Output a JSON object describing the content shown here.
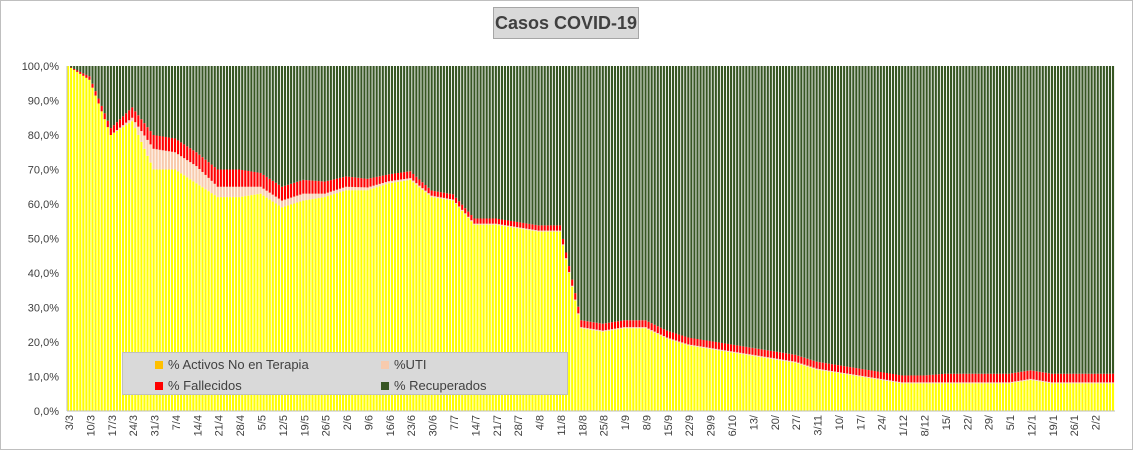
{
  "title": "Casos  COVID-19",
  "legend": {
    "items": [
      {
        "label": "% Activos No en Terapia",
        "color": "#ffc000"
      },
      {
        "label": "%UTI",
        "color": "#f8cbad"
      },
      {
        "label": "% Fallecidos",
        "color": "#ff0000"
      },
      {
        "label": "% Recuperados",
        "color": "#375623"
      }
    ]
  },
  "chart_data": {
    "type": "bar",
    "stacked": true,
    "title": "Casos  COVID-19",
    "xlabel": "",
    "ylabel": "",
    "ylim": [
      0,
      100
    ],
    "y_tick_labels": [
      "0,0%",
      "10,0%",
      "20,0%",
      "30,0%",
      "40,0%",
      "50,0%",
      "60,0%",
      "70,0%",
      "80,0%",
      "90,0%",
      "100,0%"
    ],
    "x_tick_labels": [
      "3/3",
      "10/3",
      "17/3",
      "24/3",
      "31/3",
      "7/4",
      "14/4",
      "21/4",
      "28/4",
      "5/5",
      "12/5",
      "19/5",
      "26/5",
      "2/6",
      "9/6",
      "16/6",
      "23/6",
      "30/6",
      "7/7",
      "14/7",
      "21/7",
      "28/7",
      "4/8",
      "11/8",
      "18/8",
      "25/8",
      "1/9",
      "8/9",
      "15/9",
      "22/9",
      "29/9",
      "6/10",
      "13/",
      "20/",
      "27/",
      "3/11",
      "10/",
      "17/",
      "24/",
      "1/12",
      "8/12",
      "15/",
      "22/",
      "29/",
      "5/1",
      "12/1",
      "19/1",
      "26/1",
      "2/2"
    ],
    "series_colors": {
      "activos": "#ffff00",
      "uti": "#f8cbad",
      "fallecidos": "#ff0000",
      "recuperados": "#375623"
    },
    "series": [
      {
        "name": "% Activos No en Terapia",
        "values_by_week": [
          100,
          96,
          80,
          84,
          70,
          70,
          66,
          62,
          62,
          63,
          59,
          61,
          62,
          64,
          64,
          66,
          67,
          62,
          61,
          54,
          54,
          53,
          52,
          52,
          24,
          23,
          24,
          24,
          21,
          19,
          18,
          17,
          16,
          15,
          14,
          12,
          11,
          10,
          9,
          8,
          8,
          8,
          8,
          8,
          8,
          9,
          8,
          8,
          8
        ]
      },
      {
        "name": "%UTI",
        "values_by_week": [
          0,
          0,
          0,
          1,
          6,
          5,
          5,
          3,
          3,
          2,
          2,
          2,
          1,
          1,
          0.8,
          0.6,
          0.5,
          0.4,
          0.3,
          0.3,
          0.3,
          0.3,
          0.3,
          0.3,
          0.3,
          0.3,
          0.3,
          0.3,
          0.3,
          0.3,
          0.3,
          0.3,
          0.3,
          0.3,
          0.3,
          0.3,
          0.3,
          0.3,
          0.3,
          0.3,
          0.3,
          0.3,
          0.3,
          0.3,
          0.3,
          0.3,
          0.3,
          0.3,
          0.3
        ]
      },
      {
        "name": "% Fallecidos",
        "values_by_week": [
          0,
          1,
          2,
          3,
          4,
          4,
          4,
          5,
          5,
          4,
          4,
          4,
          3.5,
          3,
          2.5,
          2,
          2,
          1.5,
          1.5,
          1.5,
          1.5,
          1.5,
          1.5,
          1.5,
          2,
          2,
          2,
          2,
          2,
          2,
          2,
          2,
          2,
          2,
          2,
          2,
          2,
          2,
          2,
          2,
          2,
          2.5,
          2.5,
          2.5,
          2.5,
          2.5,
          2.5,
          2.5,
          2.5
        ]
      }
    ],
    "note_recuperados": "remainder to 100%",
    "grid": false,
    "legend_position": "bottom-left"
  }
}
